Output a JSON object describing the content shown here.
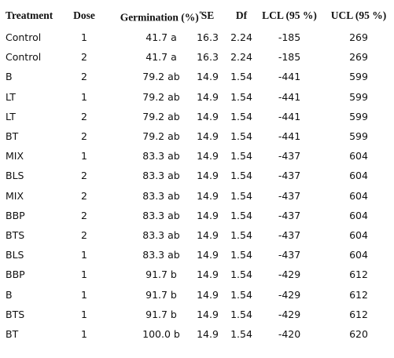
{
  "table": {
    "header": [
      "Treatment",
      "Dose",
      "Germination (%)",
      "SE",
      "Df",
      "LCL (95 %)",
      "UCL (95 %)"
    ],
    "header_note": "*",
    "rows": [
      [
        "Control",
        "1",
        "41.7 a",
        "16.3",
        "2.24",
        "-185",
        "269"
      ],
      [
        "Control",
        "2",
        "41.7 a",
        "16.3",
        "2.24",
        "-185",
        "269"
      ],
      [
        "B",
        "2",
        "79.2 ab",
        "14.9",
        "1.54",
        "-441",
        "599"
      ],
      [
        "LT",
        "1",
        "79.2 ab",
        "14.9",
        "1.54",
        "-441",
        "599"
      ],
      [
        "LT",
        "2",
        "79.2 ab",
        "14.9",
        "1.54",
        "-441",
        "599"
      ],
      [
        "BT",
        "2",
        "79.2 ab",
        "14.9",
        "1.54",
        "-441",
        "599"
      ],
      [
        "MIX",
        "1",
        "83.3 ab",
        "14.9",
        "1.54",
        "-437",
        "604"
      ],
      [
        "BLS",
        "2",
        "83.3 ab",
        "14.9",
        "1.54",
        "-437",
        "604"
      ],
      [
        "MIX",
        "2",
        "83.3 ab",
        "14.9",
        "1.54",
        "-437",
        "604"
      ],
      [
        "BBP",
        "2",
        "83.3 ab",
        "14.9",
        "1.54",
        "-437",
        "604"
      ],
      [
        "BTS",
        "2",
        "83.3 ab",
        "14.9",
        "1.54",
        "-437",
        "604"
      ],
      [
        "BLS",
        "1",
        "83.3 ab",
        "14.9",
        "1.54",
        "-437",
        "604"
      ],
      [
        "BBP",
        "1",
        "91.7 b",
        "14.9",
        "1.54",
        "-429",
        "612"
      ],
      [
        "B",
        "1",
        "91.7 b",
        "14.9",
        "1.54",
        "-429",
        "612"
      ],
      [
        "BTS",
        "1",
        "91.7 b",
        "14.9",
        "1.54",
        "-429",
        "612"
      ],
      [
        "BT",
        "1",
        "100.0 b",
        "14.9",
        "1.54",
        "-420",
        "620"
      ]
    ]
  }
}
